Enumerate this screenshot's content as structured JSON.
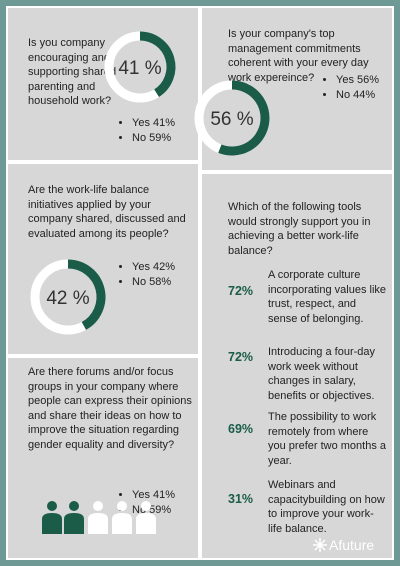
{
  "panels": [
    {
      "question": "Is you company encouraging and supporting shared parenting and household work?",
      "donut": {
        "value": 41,
        "label": "41 %"
      },
      "answers": [
        "Yes 41%",
        "No 59%"
      ]
    },
    {
      "question": "Is your company's top management commitments coherent with your every day work expereince?",
      "donut": {
        "value": 56,
        "label": "56 %"
      },
      "answers": [
        "Yes 56%",
        "No 44%"
      ]
    },
    {
      "question": "Are the work-life balance initiatives applied by your company shared, discussed and evaluated among its people?",
      "donut": {
        "value": 42,
        "label": "42 %"
      },
      "answers": [
        "Yes 42%",
        "No 58%"
      ]
    },
    {
      "question": "Are there forums and/or focus groups in your company where people can express their opinions and share their ideas on how to improve the situation regarding gender equality and diversity?",
      "answers": [
        "Yes 41%",
        "No 59%"
      ]
    }
  ],
  "tools": {
    "question": "Which of the following tools would strongly support you in achieving a better work-life balance?",
    "items": [
      {
        "percent": "72%",
        "text": "A corporate culture incorporating values like trust, respect, and sense of belonging."
      },
      {
        "percent": "72%",
        "text": "Introducing a four-day work week without changes in salary, benefits or objectives."
      },
      {
        "percent": "69%",
        "text": "The possibility to work remotely from where you prefer two months a year."
      },
      {
        "percent": "31%",
        "text": "Webinars and capacitybuilding on how to improve your work-life balance."
      }
    ]
  },
  "logo": "Afuture"
}
